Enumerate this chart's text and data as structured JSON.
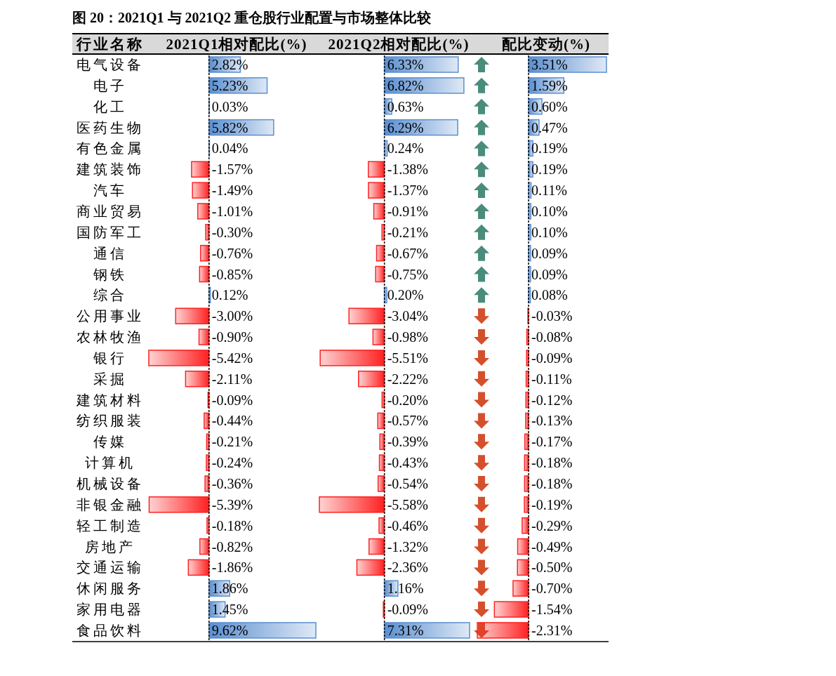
{
  "chart_data": [
    {
      "type": "bar",
      "orientation": "horizontal",
      "title": "图 20：2021Q1 与 2021Q2 重仓股行业配置与市场整体比较",
      "xlabel": "2021Q1相对配比(%)",
      "ylabel": "行业名称",
      "tick_labels": "y",
      "xlim": [
        -5.42,
        9.62
      ],
      "ref_lines": [
        {
          "axis": "x",
          "value": 0,
          "color": "#000000",
          "line_style": "dashed"
        }
      ],
      "categories": [
        "电气设备",
        "电子",
        "化工",
        "医药生物",
        "有色金属",
        "建筑装饰",
        "汽车",
        "商业贸易",
        "国防军工",
        "通信",
        "钢铁",
        "综合",
        "公用事业",
        "农林牧渔",
        "银行",
        "采掘",
        "建筑材料",
        "纺织服装",
        "传媒",
        "计算机",
        "机械设备",
        "非银金融",
        "轻工制造",
        "房地产",
        "交通运输",
        "休闲服务",
        "家用电器",
        "食品饮料"
      ],
      "values": [
        2.82,
        5.23,
        0.03,
        5.82,
        0.04,
        -1.57,
        -1.49,
        -1.01,
        -0.3,
        -0.76,
        -0.85,
        0.12,
        -3.0,
        -0.9,
        -5.42,
        -2.11,
        -0.09,
        -0.44,
        -0.21,
        -0.24,
        -0.36,
        -5.39,
        -0.18,
        -0.82,
        -1.86,
        1.86,
        1.45,
        9.62
      ],
      "value_labels": [
        "2.82%",
        "5.23%",
        "0.03%",
        "5.82%",
        "0.04%",
        "-1.57%",
        "-1.49%",
        "-1.01%",
        "-0.30%",
        "-0.76%",
        "-0.85%",
        "0.12%",
        "-3.00%",
        "-0.90%",
        "-5.42%",
        "-2.11%",
        "-0.09%",
        "-0.44%",
        "-0.21%",
        "-0.24%",
        "-0.36%",
        "-5.39%",
        "-0.18%",
        "-0.82%",
        "-1.86%",
        "1.86%",
        "1.45%",
        "9.62%"
      ],
      "colors": [
        "#5b8fd0",
        "#5b8fd0",
        "#5b8fd0",
        "#5b8fd0",
        "#5b8fd0",
        "#ff2020",
        "#ff2020",
        "#ff2020",
        "#ff2020",
        "#ff2020",
        "#ff2020",
        "#5b8fd0",
        "#ff2020",
        "#ff2020",
        "#ff2020",
        "#ff2020",
        "#ff2020",
        "#ff2020",
        "#ff2020",
        "#ff2020",
        "#ff2020",
        "#ff2020",
        "#ff2020",
        "#ff2020",
        "#ff2020",
        "#5b8fd0",
        "#5b8fd0",
        "#5b8fd0"
      ]
    },
    {
      "type": "bar",
      "orientation": "horizontal",
      "xlabel": "2021Q2相对配比(%)",
      "tick_labels": false,
      "xlim": [
        -5.58,
        7.31
      ],
      "ref_lines": [
        {
          "axis": "x",
          "value": 0,
          "color": "#000000",
          "line_style": "dashed"
        }
      ],
      "values": [
        6.33,
        6.82,
        0.63,
        6.29,
        0.24,
        -1.38,
        -1.37,
        -0.91,
        -0.21,
        -0.67,
        -0.75,
        0.2,
        -3.04,
        -0.98,
        -5.51,
        -2.22,
        -0.2,
        -0.57,
        -0.39,
        -0.43,
        -0.54,
        -5.58,
        -0.46,
        -1.32,
        -2.36,
        1.16,
        -0.09,
        7.31
      ],
      "value_labels": [
        "6.33%",
        "6.82%",
        "0.63%",
        "6.29%",
        "0.24%",
        "-1.38%",
        "-1.37%",
        "-0.91%",
        "-0.21%",
        "-0.67%",
        "-0.75%",
        "0.20%",
        "-3.04%",
        "-0.98%",
        "-5.51%",
        "-2.22%",
        "-0.20%",
        "-0.57%",
        "-0.39%",
        "-0.43%",
        "-0.54%",
        "-5.58%",
        "-0.46%",
        "-1.32%",
        "-2.36%",
        "1.16%",
        "-0.09%",
        "7.31%"
      ],
      "colors": [
        "#5b8fd0",
        "#5b8fd0",
        "#5b8fd0",
        "#5b8fd0",
        "#5b8fd0",
        "#ff2020",
        "#ff2020",
        "#ff2020",
        "#ff2020",
        "#ff2020",
        "#ff2020",
        "#5b8fd0",
        "#ff2020",
        "#ff2020",
        "#ff2020",
        "#ff2020",
        "#ff2020",
        "#ff2020",
        "#ff2020",
        "#ff2020",
        "#ff2020",
        "#ff2020",
        "#ff2020",
        "#ff2020",
        "#ff2020",
        "#5b8fd0",
        "#ff2020",
        "#5b8fd0"
      ]
    },
    {
      "type": "bar",
      "orientation": "horizontal",
      "xlabel": "配比变动(%)",
      "tick_labels": false,
      "xlim": [
        -2.31,
        3.51
      ],
      "ref_lines": [
        {
          "axis": "x",
          "value": 0,
          "color": "#000000",
          "line_style": "dashed"
        }
      ],
      "values": [
        3.51,
        1.59,
        0.6,
        0.47,
        0.19,
        0.19,
        0.11,
        0.1,
        0.1,
        0.09,
        0.09,
        0.08,
        -0.03,
        -0.08,
        -0.09,
        -0.11,
        -0.12,
        -0.13,
        -0.17,
        -0.18,
        -0.18,
        -0.19,
        -0.29,
        -0.49,
        -0.5,
        -0.7,
        -1.54,
        -2.31
      ],
      "value_labels": [
        "3.51%",
        "1.59%",
        "0.60%",
        "0.47%",
        "0.19%",
        "0.19%",
        "0.11%",
        "0.10%",
        "0.10%",
        "0.09%",
        "0.09%",
        "0.08%",
        "-0.03%",
        "-0.08%",
        "-0.09%",
        "-0.11%",
        "-0.12%",
        "-0.13%",
        "-0.17%",
        "-0.18%",
        "-0.18%",
        "-0.19%",
        "-0.29%",
        "-0.49%",
        "-0.50%",
        "-0.70%",
        "-1.54%",
        "-2.31%"
      ],
      "colors": [
        "#5b8fd0",
        "#5b8fd0",
        "#5b8fd0",
        "#5b8fd0",
        "#5b8fd0",
        "#5b8fd0",
        "#5b8fd0",
        "#5b8fd0",
        "#5b8fd0",
        "#5b8fd0",
        "#5b8fd0",
        "#5b8fd0",
        "#ff2020",
        "#ff2020",
        "#ff2020",
        "#ff2020",
        "#ff2020",
        "#ff2020",
        "#ff2020",
        "#ff2020",
        "#ff2020",
        "#ff2020",
        "#ff2020",
        "#ff2020",
        "#ff2020",
        "#ff2020",
        "#ff2020",
        "#ff2020"
      ]
    }
  ]
}
